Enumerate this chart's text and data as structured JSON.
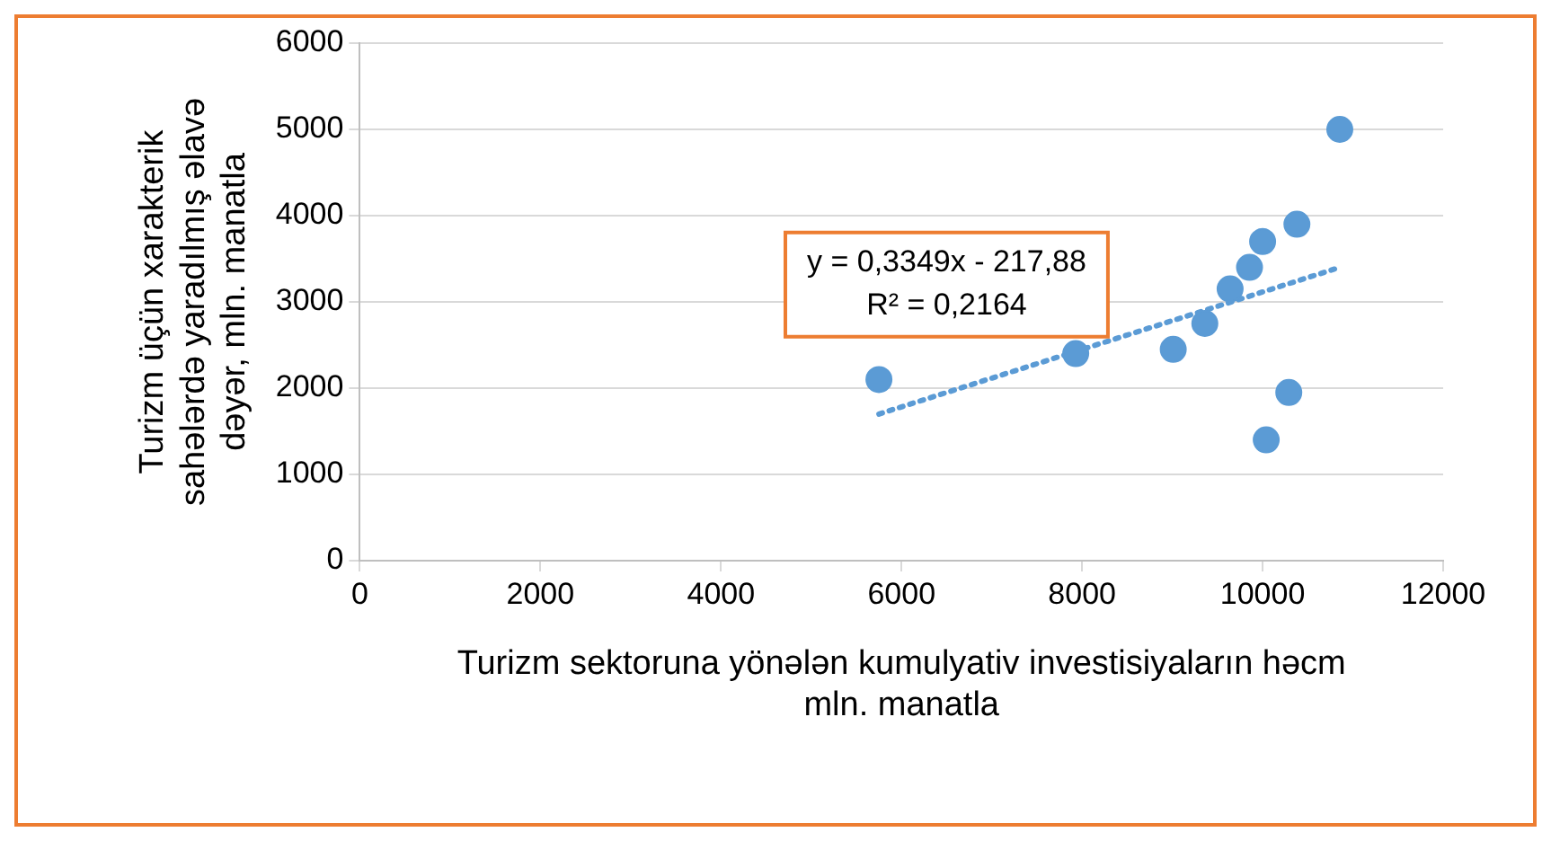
{
  "chart_data": {
    "type": "scatter",
    "xlabel": "Turizm sektoruna yönələn kumulyativ investisiyaların həcm\nmln. manatla",
    "ylabel": "Turizm üçün xarakterik\nsahələrdə yaradılmış əlavə\ndəyər, mln. manatla",
    "series": [
      {
        "color": "#5b9bd5",
        "marker": "circle",
        "x": [
          5750,
          7930,
          9010,
          9360,
          9640,
          9855,
          10000,
          10380,
          10855,
          10290,
          10040
        ],
        "values": [
          2100,
          2400,
          2450,
          2750,
          3150,
          3400,
          3700,
          3900,
          5000,
          1950,
          1400
        ]
      },
      {
        "type": "line",
        "color": "#5b9bd5",
        "line_style": "dotted",
        "marker": "none",
        "x": [
          5750,
          10855
        ],
        "values": [
          1700,
          3400
        ]
      }
    ],
    "annotations": [
      "y = 0,3349x - 217,88\nR² = 0,2164"
    ],
    "xlim": [
      0,
      12000
    ],
    "xticks": [
      0,
      2000,
      4000,
      6000,
      8000,
      10000,
      12000
    ],
    "ylim": [
      0,
      6000
    ],
    "yticks": [
      0,
      1000,
      2000,
      3000,
      4000,
      5000,
      6000
    ],
    "grid": "y",
    "legend": false
  }
}
